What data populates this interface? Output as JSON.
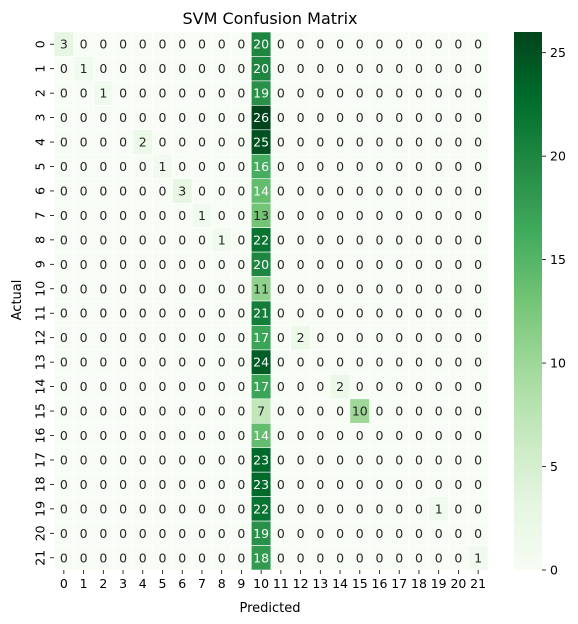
{
  "chart_data": {
    "type": "heatmap",
    "title": "SVM Confusion Matrix",
    "xlabel": "Predicted",
    "ylabel": "Actual",
    "x_categories": [
      "0",
      "1",
      "2",
      "3",
      "4",
      "5",
      "6",
      "7",
      "8",
      "9",
      "10",
      "11",
      "12",
      "13",
      "14",
      "15",
      "16",
      "17",
      "18",
      "19",
      "20",
      "21"
    ],
    "y_categories": [
      "0",
      "1",
      "2",
      "3",
      "4",
      "5",
      "6",
      "7",
      "8",
      "9",
      "10",
      "11",
      "12",
      "13",
      "14",
      "15",
      "16",
      "17",
      "18",
      "19",
      "20",
      "21"
    ],
    "values": [
      [
        3,
        0,
        0,
        0,
        0,
        0,
        0,
        0,
        0,
        0,
        20,
        0,
        0,
        0,
        0,
        0,
        0,
        0,
        0,
        0,
        0,
        0
      ],
      [
        0,
        1,
        0,
        0,
        0,
        0,
        0,
        0,
        0,
        0,
        20,
        0,
        0,
        0,
        0,
        0,
        0,
        0,
        0,
        0,
        0,
        0
      ],
      [
        0,
        0,
        1,
        0,
        0,
        0,
        0,
        0,
        0,
        0,
        19,
        0,
        0,
        0,
        0,
        0,
        0,
        0,
        0,
        0,
        0,
        0
      ],
      [
        0,
        0,
        0,
        0,
        0,
        0,
        0,
        0,
        0,
        0,
        26,
        0,
        0,
        0,
        0,
        0,
        0,
        0,
        0,
        0,
        0,
        0
      ],
      [
        0,
        0,
        0,
        0,
        2,
        0,
        0,
        0,
        0,
        0,
        25,
        0,
        0,
        0,
        0,
        0,
        0,
        0,
        0,
        0,
        0,
        0
      ],
      [
        0,
        0,
        0,
        0,
        0,
        1,
        0,
        0,
        0,
        0,
        16,
        0,
        0,
        0,
        0,
        0,
        0,
        0,
        0,
        0,
        0,
        0
      ],
      [
        0,
        0,
        0,
        0,
        0,
        0,
        3,
        0,
        0,
        0,
        14,
        0,
        0,
        0,
        0,
        0,
        0,
        0,
        0,
        0,
        0,
        0
      ],
      [
        0,
        0,
        0,
        0,
        0,
        0,
        0,
        1,
        0,
        0,
        13,
        0,
        0,
        0,
        0,
        0,
        0,
        0,
        0,
        0,
        0,
        0
      ],
      [
        0,
        0,
        0,
        0,
        0,
        0,
        0,
        0,
        1,
        0,
        22,
        0,
        0,
        0,
        0,
        0,
        0,
        0,
        0,
        0,
        0,
        0
      ],
      [
        0,
        0,
        0,
        0,
        0,
        0,
        0,
        0,
        0,
        0,
        20,
        0,
        0,
        0,
        0,
        0,
        0,
        0,
        0,
        0,
        0,
        0
      ],
      [
        0,
        0,
        0,
        0,
        0,
        0,
        0,
        0,
        0,
        0,
        11,
        0,
        0,
        0,
        0,
        0,
        0,
        0,
        0,
        0,
        0,
        0
      ],
      [
        0,
        0,
        0,
        0,
        0,
        0,
        0,
        0,
        0,
        0,
        21,
        0,
        0,
        0,
        0,
        0,
        0,
        0,
        0,
        0,
        0,
        0
      ],
      [
        0,
        0,
        0,
        0,
        0,
        0,
        0,
        0,
        0,
        0,
        17,
        0,
        2,
        0,
        0,
        0,
        0,
        0,
        0,
        0,
        0,
        0
      ],
      [
        0,
        0,
        0,
        0,
        0,
        0,
        0,
        0,
        0,
        0,
        24,
        0,
        0,
        0,
        0,
        0,
        0,
        0,
        0,
        0,
        0,
        0
      ],
      [
        0,
        0,
        0,
        0,
        0,
        0,
        0,
        0,
        0,
        0,
        17,
        0,
        0,
        0,
        2,
        0,
        0,
        0,
        0,
        0,
        0,
        0
      ],
      [
        0,
        0,
        0,
        0,
        0,
        0,
        0,
        0,
        0,
        0,
        7,
        0,
        0,
        0,
        0,
        10,
        0,
        0,
        0,
        0,
        0,
        0
      ],
      [
        0,
        0,
        0,
        0,
        0,
        0,
        0,
        0,
        0,
        0,
        14,
        0,
        0,
        0,
        0,
        0,
        0,
        0,
        0,
        0,
        0,
        0
      ],
      [
        0,
        0,
        0,
        0,
        0,
        0,
        0,
        0,
        0,
        0,
        23,
        0,
        0,
        0,
        0,
        0,
        0,
        0,
        0,
        0,
        0,
        0
      ],
      [
        0,
        0,
        0,
        0,
        0,
        0,
        0,
        0,
        0,
        0,
        23,
        0,
        0,
        0,
        0,
        0,
        0,
        0,
        0,
        0,
        0,
        0
      ],
      [
        0,
        0,
        0,
        0,
        0,
        0,
        0,
        0,
        0,
        0,
        22,
        0,
        0,
        0,
        0,
        0,
        0,
        0,
        0,
        1,
        0,
        0
      ],
      [
        0,
        0,
        0,
        0,
        0,
        0,
        0,
        0,
        0,
        0,
        19,
        0,
        0,
        0,
        0,
        0,
        0,
        0,
        0,
        0,
        0,
        0
      ],
      [
        0,
        0,
        0,
        0,
        0,
        0,
        0,
        0,
        0,
        0,
        18,
        0,
        0,
        0,
        0,
        0,
        0,
        0,
        0,
        0,
        0,
        1
      ]
    ],
    "colorbar": {
      "min": 0,
      "max": 26,
      "ticks": [
        0,
        5,
        10,
        15,
        20,
        25
      ],
      "colormap": "Greens",
      "low_color": "#f7fcf5",
      "high_color": "#00441b"
    },
    "annotations": true,
    "grid_lines": "white"
  }
}
